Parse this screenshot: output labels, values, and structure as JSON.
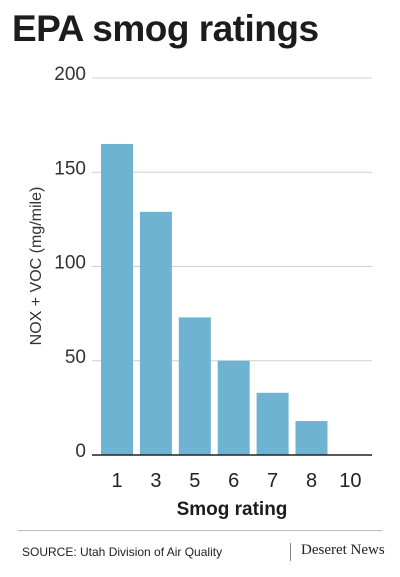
{
  "chart_data": {
    "type": "bar",
    "title": "EPA smog ratings",
    "xlabel": "Smog rating",
    "ylabel": "NOX + VOC (mg/mile)",
    "categories": [
      "1",
      "3",
      "5",
      "6",
      "7",
      "8",
      "10"
    ],
    "values": [
      165,
      129,
      73,
      50,
      33,
      18,
      0
    ],
    "ylim": [
      0,
      200
    ],
    "yticks": [
      0,
      50,
      100,
      150,
      200
    ],
    "grid": true,
    "bar_color": "#6fb3d2",
    "legend": "none"
  },
  "footer": {
    "source": "SOURCE: Utah Division of Air Quality",
    "brand": "Deseret News"
  }
}
